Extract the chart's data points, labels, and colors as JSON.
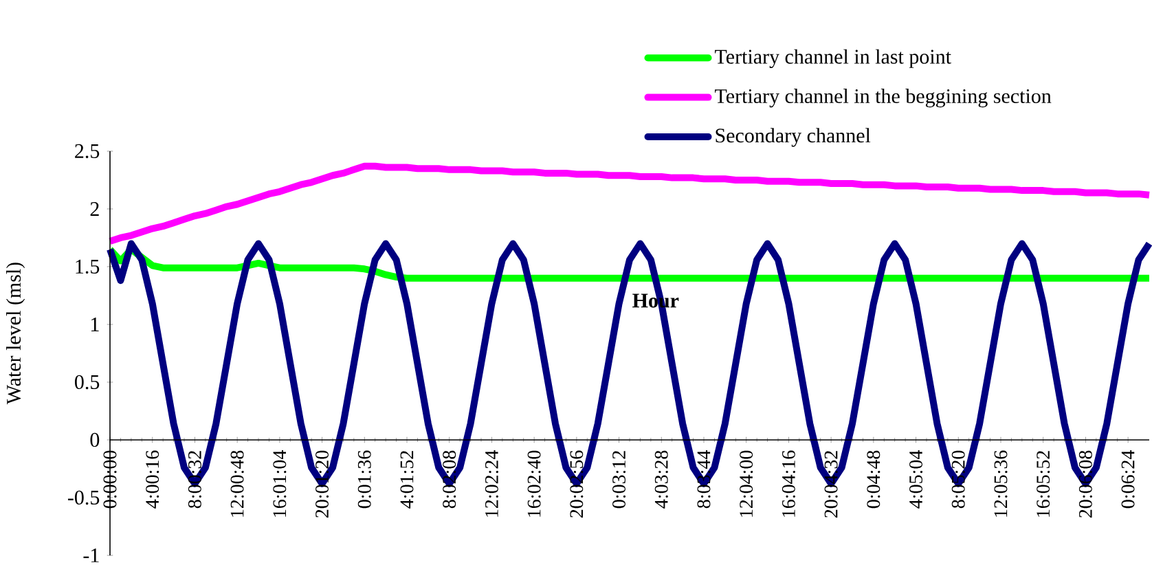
{
  "chart_data": {
    "type": "line",
    "xlabel": "Hour",
    "ylabel": "Water level (msl)",
    "ylim": [
      -1,
      2.5
    ],
    "yticks": [
      -1,
      -0.5,
      0,
      0.5,
      1,
      1.5,
      2,
      2.5
    ],
    "categories": [
      "0:00:00",
      null,
      null,
      null,
      "4:00:16",
      null,
      null,
      null,
      "8:00:32",
      null,
      null,
      null,
      "12:00:48",
      null,
      null,
      null,
      "16:01:04",
      null,
      null,
      null,
      "20:01:20",
      null,
      null,
      null,
      "0:01:36",
      null,
      null,
      null,
      "4:01:52",
      null,
      null,
      null,
      "8:02:08",
      null,
      null,
      null,
      "12:02:24",
      null,
      null,
      null,
      "16:02:40",
      null,
      null,
      null,
      "20:02:56",
      null,
      null,
      null,
      "0:03:12",
      null,
      null,
      null,
      "4:03:28",
      null,
      null,
      null,
      "8:03:44",
      null,
      null,
      null,
      "12:04:00",
      null,
      null,
      null,
      "16:04:16",
      null,
      null,
      null,
      "20:04:32",
      null,
      null,
      null,
      "0:04:48",
      null,
      null,
      null,
      "4:05:04",
      null,
      null,
      null,
      "8:05:20",
      null,
      null,
      null,
      "12:05:36",
      null,
      null,
      null,
      "16:05:52",
      null,
      null,
      null,
      "20:06:08",
      null,
      null,
      null,
      "0:06:24",
      null,
      null
    ],
    "legend": "top",
    "series": [
      {
        "name": "Tertiary channel in last point",
        "color": "#00ff00",
        "values": [
          1.65,
          1.55,
          1.65,
          1.58,
          1.51,
          1.49,
          1.49,
          1.49,
          1.49,
          1.49,
          1.49,
          1.49,
          1.49,
          1.51,
          1.53,
          1.51,
          1.49,
          1.49,
          1.49,
          1.49,
          1.49,
          1.49,
          1.49,
          1.49,
          1.48,
          1.46,
          1.43,
          1.41,
          1.4,
          1.4,
          1.4,
          1.4,
          1.4,
          1.4,
          1.4,
          1.4,
          1.4,
          1.4,
          1.4,
          1.4,
          1.4,
          1.4,
          1.4,
          1.4,
          1.4,
          1.4,
          1.4,
          1.4,
          1.4,
          1.4,
          1.4,
          1.4,
          1.4,
          1.4,
          1.4,
          1.4,
          1.4,
          1.4,
          1.4,
          1.4,
          1.4,
          1.4,
          1.4,
          1.4,
          1.4,
          1.4,
          1.4,
          1.4,
          1.4,
          1.4,
          1.4,
          1.4,
          1.4,
          1.4,
          1.4,
          1.4,
          1.4,
          1.4,
          1.4,
          1.4,
          1.4,
          1.4,
          1.4,
          1.4,
          1.4,
          1.4,
          1.4,
          1.4,
          1.4,
          1.4,
          1.4,
          1.4,
          1.4,
          1.4,
          1.4,
          1.4,
          1.4,
          1.4,
          1.4
        ]
      },
      {
        "name": "Tertiary channel in the beggining section",
        "color": "#ff00ff",
        "values": [
          1.72,
          1.75,
          1.77,
          1.8,
          1.83,
          1.85,
          1.88,
          1.91,
          1.94,
          1.96,
          1.99,
          2.02,
          2.04,
          2.07,
          2.1,
          2.13,
          2.15,
          2.18,
          2.21,
          2.23,
          2.26,
          2.29,
          2.31,
          2.34,
          2.37,
          2.37,
          2.36,
          2.36,
          2.36,
          2.35,
          2.35,
          2.35,
          2.34,
          2.34,
          2.34,
          2.33,
          2.33,
          2.33,
          2.32,
          2.32,
          2.32,
          2.31,
          2.31,
          2.31,
          2.3,
          2.3,
          2.3,
          2.29,
          2.29,
          2.29,
          2.28,
          2.28,
          2.28,
          2.27,
          2.27,
          2.27,
          2.26,
          2.26,
          2.26,
          2.25,
          2.25,
          2.25,
          2.24,
          2.24,
          2.24,
          2.23,
          2.23,
          2.23,
          2.22,
          2.22,
          2.22,
          2.21,
          2.21,
          2.21,
          2.2,
          2.2,
          2.2,
          2.19,
          2.19,
          2.19,
          2.18,
          2.18,
          2.18,
          2.17,
          2.17,
          2.17,
          2.16,
          2.16,
          2.16,
          2.15,
          2.15,
          2.15,
          2.14,
          2.14,
          2.14,
          2.13,
          2.13,
          2.13,
          2.12
        ]
      },
      {
        "name": "Secondary channel",
        "color": "#000080",
        "values": [
          1.65,
          1.38,
          1.7,
          1.56,
          1.18,
          0.66,
          0.14,
          -0.24,
          -0.38,
          -0.24,
          0.14,
          0.66,
          1.18,
          1.56,
          1.7,
          1.56,
          1.18,
          0.66,
          0.14,
          -0.24,
          -0.38,
          -0.24,
          0.14,
          0.66,
          1.18,
          1.56,
          1.7,
          1.56,
          1.18,
          0.66,
          0.14,
          -0.24,
          -0.38,
          -0.24,
          0.14,
          0.66,
          1.18,
          1.56,
          1.7,
          1.56,
          1.18,
          0.66,
          0.14,
          -0.24,
          -0.38,
          -0.24,
          0.14,
          0.66,
          1.18,
          1.56,
          1.7,
          1.56,
          1.18,
          0.66,
          0.14,
          -0.24,
          -0.38,
          -0.24,
          0.14,
          0.66,
          1.18,
          1.56,
          1.7,
          1.56,
          1.18,
          0.66,
          0.14,
          -0.24,
          -0.38,
          -0.24,
          0.14,
          0.66,
          1.18,
          1.56,
          1.7,
          1.56,
          1.18,
          0.66,
          0.14,
          -0.24,
          -0.38,
          -0.24,
          0.14,
          0.66,
          1.18,
          1.56,
          1.7,
          1.56,
          1.18,
          0.66,
          0.14,
          -0.24,
          -0.38,
          -0.24,
          0.14,
          0.66,
          1.18,
          1.56,
          1.7
        ]
      }
    ]
  }
}
